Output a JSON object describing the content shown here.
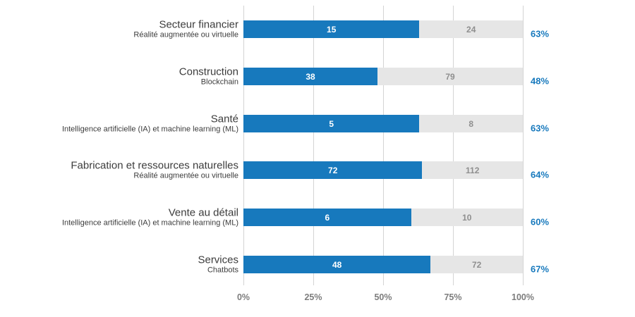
{
  "chart_data": {
    "type": "bar",
    "orientation": "horizontal",
    "title": "",
    "xlabel": "",
    "ylabel": "",
    "xlim": [
      0,
      100
    ],
    "grid": true,
    "x_ticks": [
      "0%",
      "25%",
      "50%",
      "75%",
      "100%"
    ],
    "rows": [
      {
        "sector": "Secteur financier",
        "technology": "Réalité augmentée ou virtuelle",
        "value": "15",
        "total": "24",
        "percent": "63%"
      },
      {
        "sector": "Construction",
        "technology": "Blockchain",
        "value": "38",
        "total": "79",
        "percent": "48%"
      },
      {
        "sector": "Santé",
        "technology": "Intelligence artificielle (IA) et machine learning (ML)",
        "value": "5",
        "total": "8",
        "percent": "63%"
      },
      {
        "sector": "Fabrication et ressources naturelles",
        "technology": "Réalité augmentée ou virtuelle",
        "value": "72",
        "total": "112",
        "percent": "64%"
      },
      {
        "sector": "Vente au détail",
        "technology": "Intelligence artificielle (IA) et machine learning (ML)",
        "value": "6",
        "total": "10",
        "percent": "60%"
      },
      {
        "sector": "Services",
        "technology": "Chatbots",
        "value": "48",
        "total": "72",
        "percent": "67%"
      }
    ],
    "colors": {
      "bar_fill": "#1779BD",
      "bar_track": "#E6E6E6",
      "value_on_fill": "#FFFFFF",
      "value_on_track": "#8F8F8F",
      "percent_label": "#1779BD",
      "axis_label": "#7D7D7D",
      "category_label": "#3C3C3C",
      "gridline": "#D4D4D4"
    }
  }
}
